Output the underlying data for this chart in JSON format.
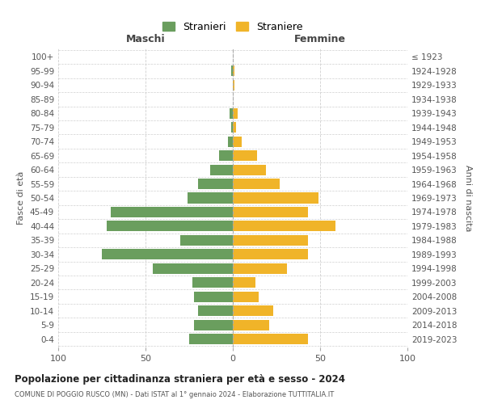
{
  "age_groups": [
    "100+",
    "95-99",
    "90-94",
    "85-89",
    "80-84",
    "75-79",
    "70-74",
    "65-69",
    "60-64",
    "55-59",
    "50-54",
    "45-49",
    "40-44",
    "35-39",
    "30-34",
    "25-29",
    "20-24",
    "15-19",
    "10-14",
    "5-9",
    "0-4"
  ],
  "birth_years": [
    "≤ 1923",
    "1924-1928",
    "1929-1933",
    "1934-1938",
    "1939-1943",
    "1944-1948",
    "1949-1953",
    "1954-1958",
    "1959-1963",
    "1964-1968",
    "1969-1973",
    "1974-1978",
    "1979-1983",
    "1984-1988",
    "1989-1993",
    "1994-1998",
    "1999-2003",
    "2004-2008",
    "2009-2013",
    "2014-2018",
    "2019-2023"
  ],
  "stranieri": [
    0,
    1,
    0,
    0,
    2,
    1,
    3,
    8,
    13,
    20,
    26,
    70,
    72,
    30,
    75,
    46,
    23,
    22,
    20,
    22,
    25
  ],
  "straniere": [
    0,
    1,
    1,
    0,
    3,
    2,
    5,
    14,
    19,
    27,
    49,
    43,
    59,
    43,
    43,
    31,
    13,
    15,
    23,
    21,
    43
  ],
  "color_stranieri": "#6a9e5e",
  "color_straniere": "#f0b429",
  "title": "Popolazione per cittadinanza straniera per età e sesso - 2024",
  "subtitle": "COMUNE DI POGGIO RUSCO (MN) - Dati ISTAT al 1° gennaio 2024 - Elaborazione TUTTITALIA.IT",
  "xlabel_left": "Maschi",
  "xlabel_right": "Femmine",
  "ylabel_left": "Fasce di età",
  "ylabel_right": "Anni di nascita",
  "legend_stranieri": "Stranieri",
  "legend_straniere": "Straniere",
  "xlim": 100,
  "background_color": "#ffffff",
  "grid_color": "#d0d0d0"
}
